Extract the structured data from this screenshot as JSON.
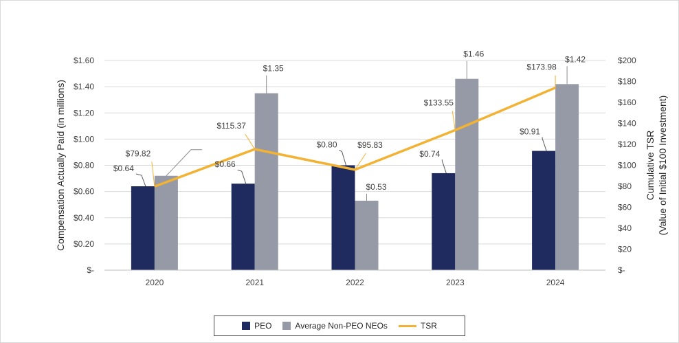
{
  "colors": {
    "peo": "#1f2a5e",
    "non_peo": "#969aa7",
    "tsr": "#f2b233",
    "grid": "#d9d9d9"
  },
  "chart_data": {
    "type": "bar+line",
    "categories": [
      "2020",
      "2021",
      "2022",
      "2023",
      "2024"
    ],
    "left_axis": {
      "label": "Compensation Actually Paid (in millions)",
      "range": [
        0,
        1.6
      ],
      "ticks": [
        "$-",
        "$0.20",
        "$0.40",
        "$0.60",
        "$0.80",
        "$1.00",
        "$1.20",
        "$1.40",
        "$1.60"
      ],
      "tick_values": [
        0,
        0.2,
        0.4,
        0.6,
        0.8,
        1.0,
        1.2,
        1.4,
        1.6
      ]
    },
    "right_axis": {
      "label_line1": "Cumulative TSR",
      "label_line2": "(Value of Initial $100 Investment)",
      "range": [
        0,
        200
      ],
      "ticks": [
        "$-",
        "$20",
        "$40",
        "$60",
        "$80",
        "$100",
        "$120",
        "$140",
        "$160",
        "$180",
        "$200"
      ],
      "tick_values": [
        0,
        20,
        40,
        60,
        80,
        100,
        120,
        140,
        160,
        180,
        200
      ]
    },
    "series": [
      {
        "name": "PEO",
        "type": "bar",
        "axis": "left",
        "values": [
          0.64,
          0.66,
          0.8,
          0.74,
          0.91
        ],
        "labels": [
          "$0.64",
          "$0.66",
          "$0.80",
          "$0.74",
          "$0.91"
        ]
      },
      {
        "name": "Average Non-PEO NEOs",
        "type": "bar",
        "axis": "left",
        "values": [
          0.72,
          1.35,
          0.53,
          1.46,
          1.42
        ],
        "labels": [
          "",
          "$1.35",
          "$0.53",
          "$1.46",
          "$1.42"
        ]
      },
      {
        "name": "TSR",
        "type": "line",
        "axis": "right",
        "values": [
          79.82,
          115.37,
          95.83,
          133.55,
          173.98
        ],
        "labels": [
          "$79.82",
          "$115.37",
          "$95.83",
          "$133.55",
          "$173.98"
        ]
      }
    ],
    "grid": true,
    "legend_position": "bottom"
  }
}
